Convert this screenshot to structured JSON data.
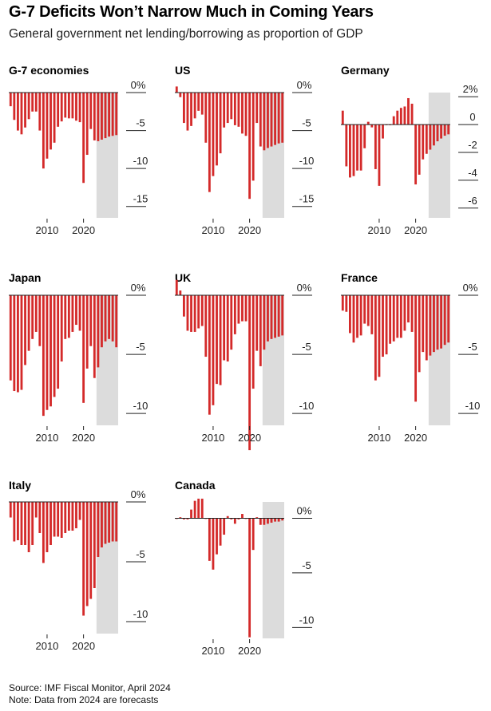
{
  "header": {
    "title": "G-7 Deficits Won’t Narrow Much in Coming Years",
    "subtitle": "General government net lending/borrowing as proportion of GDP"
  },
  "footer": {
    "source": "Source: IMF Fiscal Monitor, April 2024",
    "note": "Note: Data from 2024 are forecasts"
  },
  "colors": {
    "bar": "#d42a2a",
    "forecast_shade": "#dcdcdc",
    "axis": "#222222"
  },
  "chart_data": [
    {
      "type": "bar",
      "title": "G-7 economies",
      "x_ticks": [
        2010,
        2020
      ],
      "y_ticks": [
        0,
        -5,
        -10,
        -15
      ],
      "y_tick_labels": [
        "0%",
        "-5",
        "-10",
        "-15"
      ],
      "ylim": [
        -16.5,
        0
      ],
      "forecast_from": 2024,
      "x": [
        2000,
        2001,
        2002,
        2003,
        2004,
        2005,
        2006,
        2007,
        2008,
        2009,
        2010,
        2011,
        2012,
        2013,
        2014,
        2015,
        2016,
        2017,
        2018,
        2019,
        2020,
        2021,
        2022,
        2023,
        2024,
        2025,
        2026,
        2027,
        2028,
        2029
      ],
      "values": [
        -1.8,
        -3.6,
        -5.0,
        -5.5,
        -4.6,
        -3.5,
        -2.5,
        -2.5,
        -5.0,
        -10.0,
        -8.7,
        -7.5,
        -6.6,
        -4.5,
        -3.8,
        -3.3,
        -3.4,
        -3.4,
        -3.7,
        -3.9,
        -11.9,
        -8.2,
        -4.8,
        -6.3,
        -6.4,
        -6.2,
        -6.0,
        -5.8,
        -5.7,
        -5.6
      ]
    },
    {
      "type": "bar",
      "title": "US",
      "x_ticks": [
        2010,
        2020
      ],
      "y_ticks": [
        0,
        -5,
        -10,
        -15
      ],
      "y_tick_labels": [
        "0%",
        "-5",
        "-10",
        "-15"
      ],
      "ylim": [
        -16.5,
        0
      ],
      "forecast_from": 2024,
      "x": [
        2000,
        2001,
        2002,
        2003,
        2004,
        2005,
        2006,
        2007,
        2008,
        2009,
        2010,
        2011,
        2012,
        2013,
        2014,
        2015,
        2016,
        2017,
        2018,
        2019,
        2020,
        2021,
        2022,
        2023,
        2024,
        2025,
        2026,
        2027,
        2028,
        2029
      ],
      "values": [
        0.8,
        -0.6,
        -4.0,
        -5.0,
        -4.4,
        -3.4,
        -2.4,
        -2.9,
        -6.6,
        -13.1,
        -11.0,
        -9.6,
        -8.0,
        -4.6,
        -4.0,
        -3.5,
        -4.3,
        -4.5,
        -5.4,
        -5.7,
        -14.0,
        -11.6,
        -4.0,
        -7.1,
        -7.6,
        -7.3,
        -7.1,
        -6.9,
        -6.7,
        -6.6
      ]
    },
    {
      "type": "bar",
      "title": "Germany",
      "x_ticks": [
        2010,
        2020
      ],
      "y_ticks": [
        2,
        0,
        -2,
        -4,
        -6
      ],
      "y_tick_labels": [
        "2%",
        "0",
        "-2",
        "-4",
        "-6"
      ],
      "ylim": [
        -6.7,
        2.3
      ],
      "forecast_from": 2024,
      "x": [
        2000,
        2001,
        2002,
        2003,
        2004,
        2005,
        2006,
        2007,
        2008,
        2009,
        2010,
        2011,
        2012,
        2013,
        2014,
        2015,
        2016,
        2017,
        2018,
        2019,
        2020,
        2021,
        2022,
        2023,
        2024,
        2025,
        2026,
        2027,
        2028,
        2029
      ],
      "values": [
        1.0,
        -3.0,
        -3.8,
        -3.7,
        -3.3,
        -3.3,
        -1.7,
        0.2,
        -0.2,
        -3.2,
        -4.4,
        -1.0,
        0.0,
        0.0,
        0.6,
        1.0,
        1.2,
        1.3,
        1.9,
        1.5,
        -4.3,
        -3.6,
        -2.5,
        -2.1,
        -1.8,
        -1.5,
        -1.2,
        -1.0,
        -0.8,
        -0.7
      ]
    },
    {
      "type": "bar",
      "title": "Japan",
      "x_ticks": [
        2010,
        2020
      ],
      "y_ticks": [
        0,
        -5,
        -10
      ],
      "y_tick_labels": [
        "0%",
        "-5",
        "-10"
      ],
      "ylim": [
        -11.0,
        0
      ],
      "forecast_from": 2024,
      "x": [
        2000,
        2001,
        2002,
        2003,
        2004,
        2005,
        2006,
        2007,
        2008,
        2009,
        2010,
        2011,
        2012,
        2013,
        2014,
        2015,
        2016,
        2017,
        2018,
        2019,
        2020,
        2021,
        2022,
        2023,
        2024,
        2025,
        2026,
        2027,
        2028,
        2029
      ],
      "values": [
        -7.2,
        -8.1,
        -8.2,
        -8.0,
        -5.9,
        -4.7,
        -3.7,
        -3.1,
        -4.3,
        -10.2,
        -9.7,
        -9.4,
        -8.6,
        -7.9,
        -5.6,
        -3.7,
        -3.6,
        -3.1,
        -2.5,
        -3.0,
        -9.1,
        -6.2,
        -4.3,
        -7.0,
        -6.1,
        -4.4,
        -3.9,
        -3.7,
        -3.9,
        -4.4
      ]
    },
    {
      "type": "bar",
      "title": "UK",
      "x_ticks": [
        2010,
        2020
      ],
      "y_ticks": [
        0,
        -5,
        -10
      ],
      "y_tick_labels": [
        "0%",
        "-5",
        "-10"
      ],
      "ylim": [
        -11.0,
        0
      ],
      "forecast_from": 2024,
      "x": [
        2000,
        2001,
        2002,
        2003,
        2004,
        2005,
        2006,
        2007,
        2008,
        2009,
        2010,
        2011,
        2012,
        2013,
        2014,
        2015,
        2016,
        2017,
        2018,
        2019,
        2020,
        2021,
        2022,
        2023,
        2024,
        2025,
        2026,
        2027,
        2028,
        2029
      ],
      "values": [
        1.3,
        0.4,
        -1.8,
        -3.0,
        -3.1,
        -3.1,
        -2.8,
        -2.6,
        -5.2,
        -10.1,
        -9.3,
        -7.5,
        -7.6,
        -5.5,
        -5.6,
        -4.6,
        -3.3,
        -2.4,
        -2.2,
        -2.2,
        -13.1,
        -7.9,
        -4.7,
        -6.0,
        -4.6,
        -3.9,
        -3.7,
        -3.6,
        -3.5,
        -3.4
      ]
    },
    {
      "type": "bar",
      "title": "France",
      "x_ticks": [
        2010,
        2020
      ],
      "y_ticks": [
        0,
        -5,
        -10
      ],
      "y_tick_labels": [
        "0%",
        "-5",
        "-10"
      ],
      "ylim": [
        -11.0,
        0
      ],
      "forecast_from": 2024,
      "x": [
        2000,
        2001,
        2002,
        2003,
        2004,
        2005,
        2006,
        2007,
        2008,
        2009,
        2010,
        2011,
        2012,
        2013,
        2014,
        2015,
        2016,
        2017,
        2018,
        2019,
        2020,
        2021,
        2022,
        2023,
        2024,
        2025,
        2026,
        2027,
        2028,
        2029
      ],
      "values": [
        -1.3,
        -1.4,
        -3.2,
        -4.0,
        -3.6,
        -3.4,
        -2.4,
        -2.6,
        -3.3,
        -7.2,
        -6.9,
        -5.2,
        -5.0,
        -4.1,
        -3.9,
        -3.6,
        -3.6,
        -3.0,
        -2.3,
        -3.1,
        -9.0,
        -6.5,
        -4.8,
        -5.5,
        -5.1,
        -4.8,
        -4.6,
        -4.5,
        -4.2,
        -4.0
      ]
    },
    {
      "type": "bar",
      "title": "Italy",
      "x_ticks": [
        2010,
        2020
      ],
      "y_ticks": [
        0,
        -5,
        -10
      ],
      "y_tick_labels": [
        "0%",
        "-5",
        "-10"
      ],
      "ylim": [
        -11.0,
        0
      ],
      "forecast_from": 2024,
      "x": [
        2000,
        2001,
        2002,
        2003,
        2004,
        2005,
        2006,
        2007,
        2008,
        2009,
        2010,
        2011,
        2012,
        2013,
        2014,
        2015,
        2016,
        2017,
        2018,
        2019,
        2020,
        2021,
        2022,
        2023,
        2024,
        2025,
        2026,
        2027,
        2028,
        2029
      ],
      "values": [
        -1.3,
        -3.3,
        -3.2,
        -3.6,
        -3.6,
        -4.2,
        -3.6,
        -1.3,
        -2.6,
        -5.1,
        -4.2,
        -3.6,
        -2.9,
        -2.9,
        -3.0,
        -2.6,
        -2.4,
        -2.4,
        -2.2,
        -1.5,
        -9.5,
        -8.7,
        -8.1,
        -7.2,
        -4.6,
        -3.8,
        -3.5,
        -3.4,
        -3.3,
        -3.3
      ]
    },
    {
      "type": "bar",
      "title": "Canada",
      "x_ticks": [
        2010,
        2020
      ],
      "y_ticks": [
        0,
        -5,
        -10
      ],
      "y_tick_labels": [
        "0%",
        "-5",
        "-10"
      ],
      "ylim": [
        -11.0,
        1.5
      ],
      "forecast_from": 2024,
      "x": [
        2000,
        2001,
        2002,
        2003,
        2004,
        2005,
        2006,
        2007,
        2008,
        2009,
        2010,
        2011,
        2012,
        2013,
        2014,
        2015,
        2016,
        2017,
        2018,
        2019,
        2020,
        2021,
        2022,
        2023,
        2024,
        2025,
        2026,
        2027,
        2028,
        2029
      ],
      "values": [
        0.0,
        0.1,
        -0.1,
        -0.1,
        0.8,
        1.6,
        1.8,
        1.8,
        0.0,
        -3.9,
        -4.7,
        -3.3,
        -2.5,
        -1.5,
        0.2,
        -0.1,
        -0.5,
        -0.1,
        0.4,
        0.0,
        -10.9,
        -2.9,
        0.1,
        -0.6,
        -0.6,
        -0.5,
        -0.4,
        -0.3,
        -0.3,
        -0.2
      ]
    }
  ]
}
